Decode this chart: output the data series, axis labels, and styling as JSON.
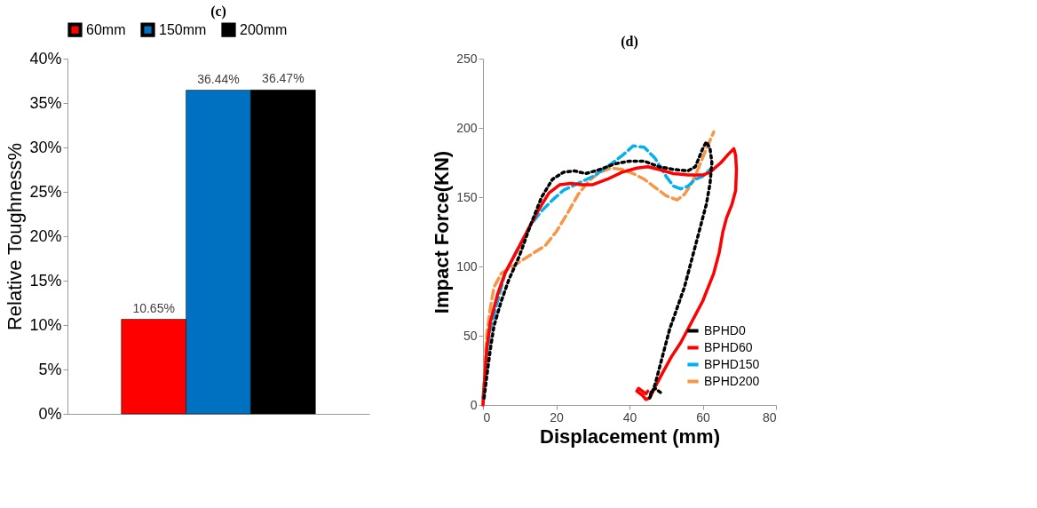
{
  "chart_data": [
    {
      "type": "bar",
      "title": "(c)",
      "ylabel": "Relative Toughness%",
      "categories": [
        null
      ],
      "tick_labels": "y",
      "grid": false,
      "legend": "top",
      "ylim": [
        0,
        40
      ],
      "yticks": [
        {
          "value": 0,
          "label": "0%"
        },
        {
          "value": 5,
          "label": "5%"
        },
        {
          "value": 10,
          "label": "10%"
        },
        {
          "value": 15,
          "label": "15%"
        },
        {
          "value": 20,
          "label": "20%"
        },
        {
          "value": 25,
          "label": "25%"
        },
        {
          "value": 30,
          "label": "30%"
        },
        {
          "value": 35,
          "label": "35%"
        },
        {
          "value": 40,
          "label": "40%"
        }
      ],
      "series": [
        {
          "name": "60mm",
          "color": "#ff0000",
          "values": [
            10.65
          ],
          "value_labels": [
            "10.65%"
          ]
        },
        {
          "name": "150mm",
          "color": "#0070c0",
          "values": [
            36.44
          ],
          "value_labels": [
            "36.44%"
          ]
        },
        {
          "name": "200mm",
          "color": "#000000",
          "values": [
            36.47
          ],
          "value_labels": [
            "36.47%"
          ]
        }
      ]
    },
    {
      "type": "line",
      "title": "(d)",
      "xlabel": "Displacement (mm)",
      "ylabel": "Impact Force(KN)",
      "grid": false,
      "legend": "bottom right",
      "xlim": [
        0,
        80
      ],
      "xticks": [
        0,
        20,
        40,
        60,
        80
      ],
      "ylim": [
        0,
        250
      ],
      "yticks": [
        0,
        50,
        100,
        150,
        200,
        250
      ],
      "series": [
        {
          "name": "BPHD0",
          "color": "#000000",
          "line_style": "dotted",
          "x": [
            0.3,
            1,
            2,
            3,
            5,
            7,
            10,
            13,
            16,
            19,
            22,
            25,
            28,
            32,
            36,
            40,
            44,
            48,
            52,
            56,
            58,
            60,
            61,
            62,
            62.5,
            62,
            61,
            59.5,
            58,
            56.5,
            55,
            53,
            51,
            49.5,
            48,
            47,
            46,
            45.5,
            46,
            47,
            49
          ],
          "values": [
            5,
            20,
            40,
            57,
            75,
            90,
            108,
            130,
            150,
            163,
            168,
            169,
            167,
            170,
            174,
            176,
            176,
            172,
            170,
            169,
            172,
            185,
            190,
            185,
            175,
            160,
            145,
            130,
            115,
            100,
            85,
            70,
            55,
            40,
            25,
            15,
            8,
            5,
            10,
            12,
            8
          ]
        },
        {
          "name": "BPHD60",
          "color": "#ff0000",
          "line_style": "solid",
          "x": [
            0,
            0.5,
            1,
            2,
            4,
            6,
            9,
            12,
            15,
            18,
            21,
            24,
            27,
            30,
            34,
            38,
            42,
            45,
            48,
            52,
            56,
            60,
            62,
            65,
            67,
            68.5,
            69,
            69.2,
            69,
            68,
            66.5,
            65.5,
            64.5,
            63,
            61.5,
            60,
            58,
            56,
            54,
            51.5,
            49,
            47,
            45.5,
            44.5,
            43.5,
            42,
            42.5,
            43.5,
            44.5,
            45
          ],
          "values": [
            0,
            20,
            40,
            60,
            80,
            95,
            110,
            125,
            140,
            153,
            159,
            160,
            159,
            159,
            163,
            168,
            171,
            172,
            170,
            167,
            166,
            166,
            168,
            175,
            181,
            185,
            180,
            170,
            155,
            145,
            135,
            125,
            110,
            95,
            85,
            75,
            65,
            55,
            45,
            35,
            23,
            13,
            5,
            4,
            7,
            10,
            12,
            10,
            8,
            10
          ]
        },
        {
          "name": "BPHD150",
          "color": "#00b0f0",
          "line_style": "dashed",
          "x": [
            0,
            0.5,
            1,
            2,
            4,
            6,
            8,
            10,
            13,
            16,
            19,
            22,
            26,
            30,
            34,
            38,
            41,
            44,
            47,
            50,
            52,
            54,
            56,
            58,
            60,
            62
          ],
          "values": [
            5,
            20,
            35,
            55,
            75,
            95,
            105,
            115,
            130,
            140,
            148,
            155,
            160,
            165,
            172,
            180,
            187,
            186,
            178,
            165,
            158,
            156,
            158,
            163,
            165,
            170
          ]
        },
        {
          "name": "BPHD200",
          "color": "#f79646",
          "line_style": "dashed",
          "x": [
            0,
            0.5,
            1,
            2,
            3,
            5,
            8,
            11,
            14,
            17,
            20,
            23,
            26,
            29,
            32,
            35,
            38,
            41,
            44,
            47,
            50,
            53,
            55,
            57,
            59,
            61,
            63
          ],
          "values": [
            0,
            25,
            50,
            70,
            85,
            95,
            100,
            105,
            110,
            115,
            125,
            138,
            152,
            162,
            168,
            171,
            170,
            167,
            163,
            157,
            151,
            148,
            152,
            160,
            172,
            185,
            197
          ]
        }
      ]
    }
  ]
}
